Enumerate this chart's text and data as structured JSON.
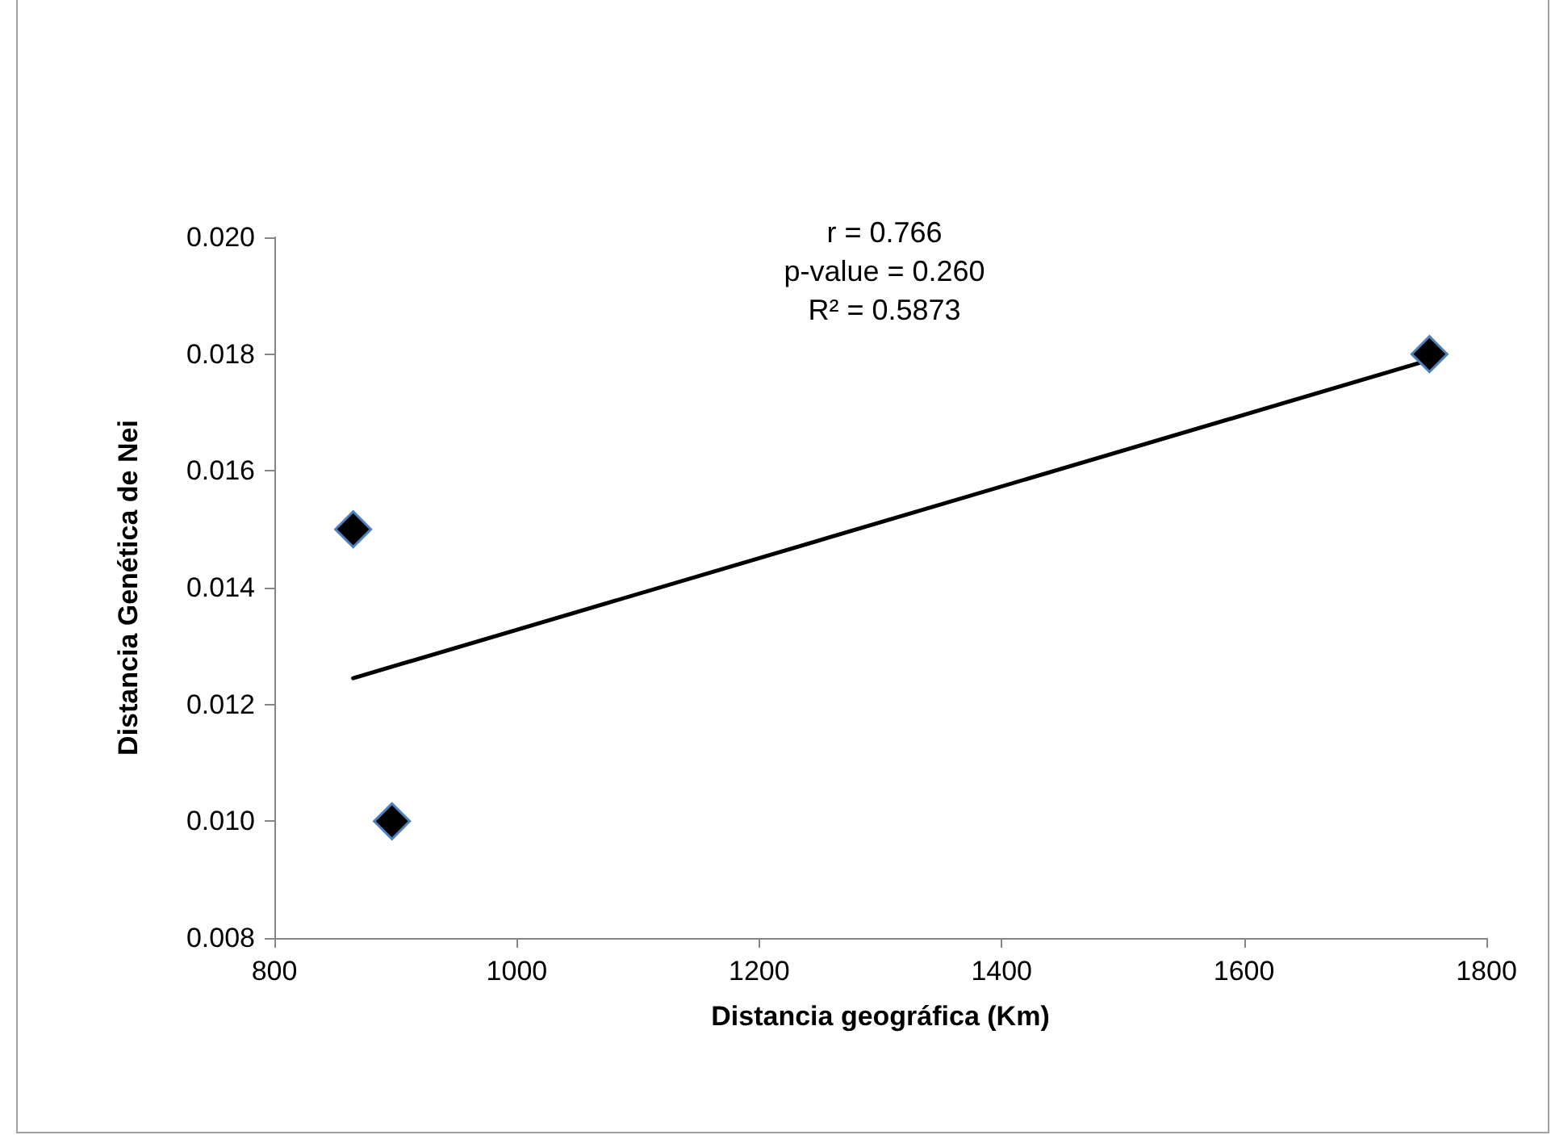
{
  "chart_data": {
    "type": "scatter",
    "xlabel": "Distancia geográfica (Km)",
    "ylabel": "Distancia Genética de Nei",
    "annotations": [
      "r = 0.766",
      "p-value = 0.260",
      "R² = 0.5873"
    ],
    "series": [
      {
        "color": "#000000",
        "x": [
          865,
          897,
          1753
        ],
        "values": [
          0.015,
          0.01,
          0.018
        ],
        "marker": "diamond"
      },
      {
        "type": "line",
        "color": "#000000",
        "x": [
          865,
          1753
        ],
        "values": [
          0.01245,
          0.0179
        ],
        "marker": "none",
        "line_style": "solid"
      }
    ],
    "xlim": [
      800,
      1800
    ],
    "xticks": [
      800,
      1000,
      1200,
      1400,
      1600,
      1800
    ],
    "ylim": [
      0.008,
      0.02
    ],
    "yticks": [
      {
        "value": 0.008,
        "label": "0.008"
      },
      {
        "value": 0.01,
        "label": "0.010"
      },
      {
        "value": 0.012,
        "label": "0.012"
      },
      {
        "value": 0.014,
        "label": "0.014"
      },
      {
        "value": 0.016,
        "label": "0.016"
      },
      {
        "value": 0.018,
        "label": "0.018"
      },
      {
        "value": 0.02,
        "label": "0.020"
      }
    ],
    "grid": false
  }
}
